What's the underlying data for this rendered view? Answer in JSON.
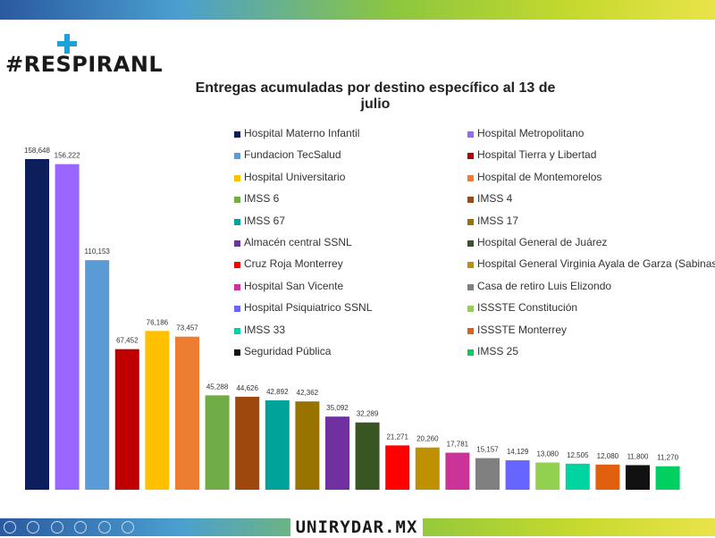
{
  "brand": {
    "hashtag": "#RESPIRANL",
    "footer_site": "UNIRYDAR.MX",
    "accent": "#1fa0d8",
    "text_color": "#1a1a1a"
  },
  "chart_data": {
    "type": "bar",
    "title": "Entregas acumuladas por destino específico al 13 de julio",
    "xlabel": "",
    "ylabel": "",
    "ylim": [
      0,
      170000
    ],
    "grid": false,
    "legend_position": "top-right",
    "categories": [
      "Hospital Materno Infantil",
      "Hospital Metropolitano",
      "Fundacion TecSalud",
      "Hospital Tierra y Libertad",
      "Hospital Universitario",
      "Hospital de Montemorelos",
      "IMSS 6",
      "IMSS 4",
      "IMSS 67",
      "IMSS 17",
      "Almacén central SSNL",
      "Hospital General de Juárez",
      "Cruz Roja Monterrey",
      "Hospital General Virginia Ayala de Garza (Sabinas)",
      "Hospital San Vicente",
      "Casa de retiro Luis Elizondo",
      "Hospital Psiquiatrico SSNL",
      "ISSSTE Constitución",
      "IMSS 33",
      "ISSSTE Monterrey",
      "Seguridad Pública",
      "IMSS 25"
    ],
    "values": [
      158648,
      156222,
      110153,
      67452,
      76186,
      73457,
      45288,
      44626,
      42892,
      42362,
      35092,
      32289,
      21271,
      20260,
      17781,
      15157,
      14129,
      13080,
      12505,
      12080,
      11800,
      11270
    ],
    "data_labels": [
      "158,648",
      "156,222",
      "110,153",
      "67,452",
      "76,186",
      "73,457",
      "45,288",
      "44,626",
      "42,892",
      "42,362",
      "35,092",
      "32,289",
      "21,271",
      "20,260",
      "17,781",
      "15,157",
      "14,129",
      "13,080",
      "12,505",
      "12,080",
      "11,800",
      "11,270"
    ],
    "colors": [
      "#0c1f5c",
      "#9966ff",
      "#5b9bd5",
      "#c00000",
      "#ffc000",
      "#ed7d31",
      "#70ad47",
      "#9e480e",
      "#00a39a",
      "#997300",
      "#7030a0",
      "#375623",
      "#ff0000",
      "#bf9000",
      "#cc3399",
      "#808080",
      "#6666ff",
      "#92d050",
      "#00d4a0",
      "#e06010",
      "#111111",
      "#00d060"
    ],
    "legend_order": [
      0,
      2,
      4,
      6,
      8,
      10,
      12,
      14,
      16,
      18,
      20,
      1,
      3,
      5,
      7,
      9,
      11,
      13,
      15,
      17,
      19,
      21
    ]
  }
}
